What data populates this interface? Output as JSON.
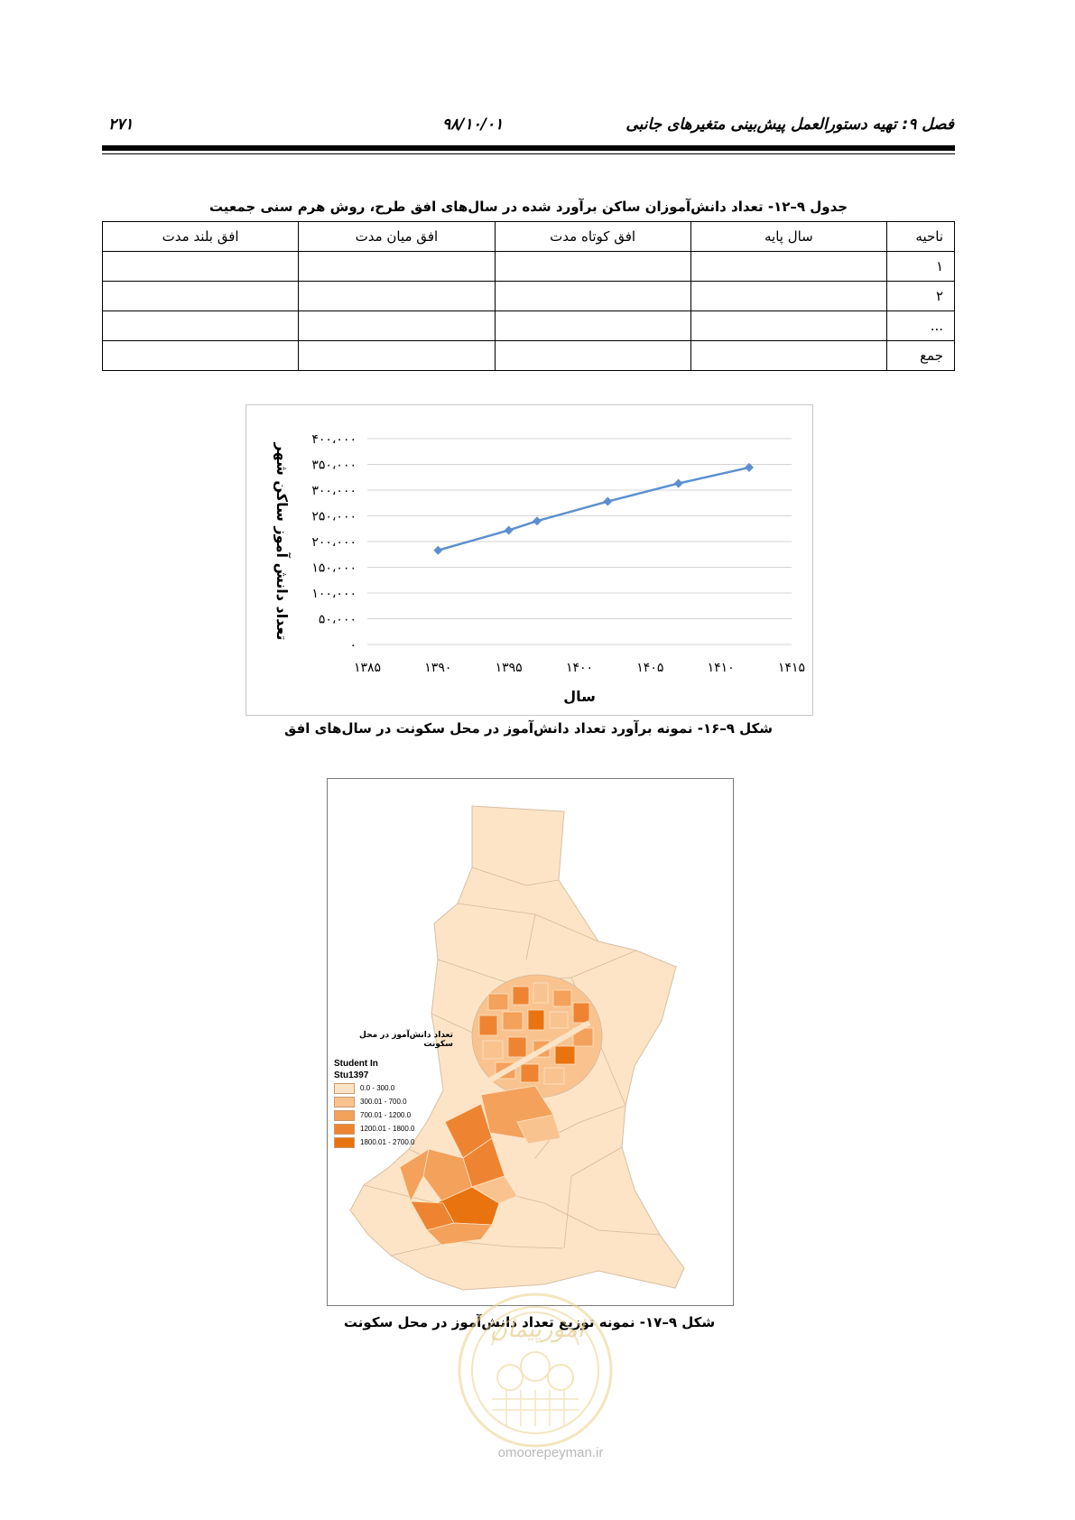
{
  "header": {
    "chapter_title": "فصل ۹: تهیه دستورالعمل پیش‌بینی متغیرهای جانبی",
    "date": "۹۸/۱۰/۰۱",
    "page_number": "۲۷۱"
  },
  "table": {
    "caption": "جدول ۹–۱۲- تعداد دانش‌آموزان ساکن برآورد شده در سال‌های افق طرح، روش هرم سنی جمعیت",
    "headers": [
      "ناحیه",
      "سال پایه",
      "افق کوتاه مدت",
      "افق میان مدت",
      "افق بلند مدت"
    ],
    "rows": [
      [
        "۱",
        "",
        "",
        "",
        ""
      ],
      [
        "۲",
        "",
        "",
        "",
        ""
      ],
      [
        "...",
        "",
        "",
        "",
        ""
      ],
      [
        "جمع",
        "",
        "",
        "",
        ""
      ]
    ]
  },
  "chart_caption": "شکل ۹–۱۶- نمونه برآورد تعداد دانش‌آموز در محل سکونت در سال‌های افق",
  "chart_data": {
    "type": "line",
    "xlabel": "سال",
    "ylabel": "تعداد دانش آموز ساکن شهر",
    "xlim": [
      1385,
      1415
    ],
    "ylim": [
      0,
      400000
    ],
    "x_ticks": [
      1385,
      1390,
      1395,
      1400,
      1405,
      1410,
      1415
    ],
    "x_tick_labels": [
      "۱۳۸۵",
      "۱۳۹۰",
      "۱۳۹۵",
      "۱۴۰۰",
      "۱۴۰۵",
      "۱۴۱۰",
      "۱۴۱۵"
    ],
    "y_ticks": [
      0,
      50000,
      100000,
      150000,
      200000,
      250000,
      300000,
      350000,
      400000
    ],
    "y_tick_labels": [
      "۰",
      "۵۰،۰۰۰",
      "۱۰۰،۰۰۰",
      "۱۵۰،۰۰۰",
      "۲۰۰،۰۰۰",
      "۲۵۰،۰۰۰",
      "۳۰۰،۰۰۰",
      "۳۵۰،۰۰۰",
      "۴۰۰،۰۰۰"
    ],
    "grid": true,
    "line_color": "#5b8fcf",
    "series": [
      {
        "x": [
          1390,
          1395,
          1397,
          1402,
          1407,
          1412
        ],
        "values": [
          183000,
          222000,
          240000,
          278000,
          313000,
          344000
        ]
      }
    ]
  },
  "map": {
    "legend_title": "تعداد دانش‌آموز در محل سکونت",
    "legend_layer": "Student In",
    "legend_field": "Stu1397",
    "classes": [
      {
        "label": "0.0 - 300.0",
        "color": "#fde4c6"
      },
      {
        "label": "300.01 - 700.0",
        "color": "#f9c38f"
      },
      {
        "label": "700.01 - 1200.0",
        "color": "#f4a15c"
      },
      {
        "label": "1200.01 - 1800.0",
        "color": "#ee8432"
      },
      {
        "label": "1800.01 - 2700.0",
        "color": "#e9730f"
      }
    ]
  },
  "map_caption": "شکل ۹–۱۷- نمونه توزیع تعداد دانش‌آموز در محل سکونت",
  "watermark": {
    "seal_text": "امورپیمان",
    "url": "omoorepeyman.ir"
  }
}
